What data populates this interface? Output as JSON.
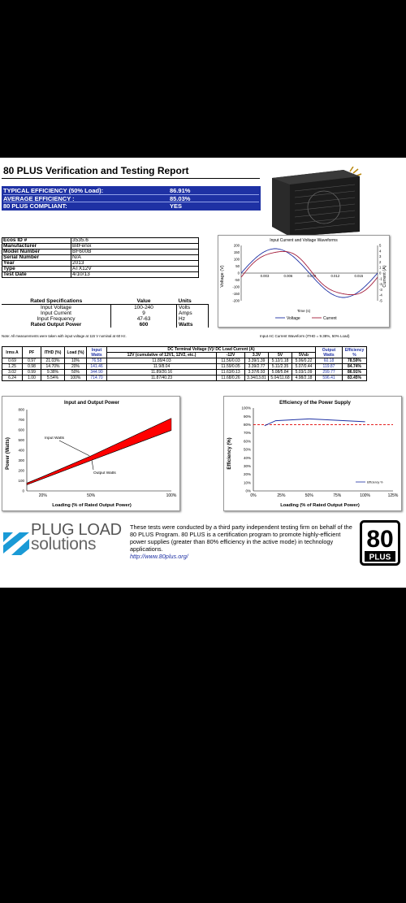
{
  "report": {
    "title": "80 PLUS Verification and Testing Report",
    "efficiency": [
      {
        "label": "TYPICAL EFFICIENCY (50% Load):",
        "value": "86.91%"
      },
      {
        "label": "AVERAGE EFFICIENCY :",
        "value": "85.03%"
      },
      {
        "label": "80 PLUS COMPLIANT:",
        "value": "YES"
      }
    ]
  },
  "info": [
    {
      "key": "Ecos ID #",
      "value": "3535.6"
    },
    {
      "key": "Manufacturer",
      "value": "BitFenix"
    },
    {
      "key": "Model Number",
      "value": "BF600B"
    },
    {
      "key": "Serial Number",
      "value": "N/A"
    },
    {
      "key": "Year",
      "value": "2013"
    },
    {
      "key": "Type",
      "value": "ATX12V"
    },
    {
      "key": "Test Date",
      "value": "4/10/13"
    }
  ],
  "rated": {
    "headers": [
      "Rated Specifications",
      "Value",
      "Units"
    ],
    "rows": [
      {
        "spec": "Input Voltage",
        "value": "100-240",
        "unit": "Volts"
      },
      {
        "spec": "Input Current",
        "value": "9",
        "unit": "Amps"
      },
      {
        "spec": "Input Frequency",
        "value": "47-63",
        "unit": "Hz"
      },
      {
        "spec": "Rated Output Power",
        "value": "600",
        "unit": "Watts"
      }
    ],
    "note": "Note: All measurements were taken with input voltage at 115 V nominal at 60 Hz."
  },
  "waveform": {
    "title": "Input Current and Voltage Waveforms",
    "ylabel_left": "Voltage (V)",
    "ylabel_right": "Current (A)",
    "xlabel": "Time (s)",
    "left_ticks": [
      "200",
      "150",
      "100",
      "50",
      "0",
      "-50",
      "-100",
      "-150",
      "-200"
    ],
    "right_ticks": [
      "5",
      "4",
      "3",
      "2",
      "1",
      "0",
      "-1",
      "-2",
      "-3",
      "-4",
      "-5"
    ],
    "x_ticks": [
      "0.003",
      "0.006",
      "0.009",
      "0.012",
      "0.015"
    ],
    "legend_voltage": "Voltage",
    "legend_current": "Current",
    "caption": "Input AC Current Waveform (ITHD = 9.38%, 50% Load)",
    "colors": {
      "voltage": "#1e31a4",
      "current": "#a41e3c"
    }
  },
  "perf": {
    "h_irms": "Irms A",
    "h_pf": "PF",
    "h_ithd": "ITHD (%)",
    "h_load": "Load (%)",
    "h_input": "Input Watts",
    "h_dc": "DC Terminal Voltage (V)/ DC Load Current (A)",
    "h_12v": "12V (cumulative of 12V1, 12V2, etc.)",
    "h_m12": "-12V",
    "h_33": "3.3V",
    "h_5": "5V",
    "h_5sb": "5Vsb",
    "h_output": "Output Watts",
    "h_eff": "Efficiency %",
    "rows": [
      {
        "irms": "0.69",
        "pf": "0.97",
        "ithd": "21.03%",
        "load": "10%",
        "input": "76.58",
        "v12": "11.89/4.03",
        "m12": "11.56/0.03",
        "v33": "3.39/1.39",
        "v5": "5.12/1.18",
        "v5sb": "5.06/0.22",
        "output": "60.18",
        "eff": "78.59%"
      },
      {
        "irms": "1.25",
        "pf": "0.98",
        "ithd": "14.70%",
        "load": "20%",
        "input": "141.46",
        "v12": "11.9/8.04",
        "m12": "11.59/0.05",
        "v33": "3.39/2.77",
        "v5": "5.11/2.35",
        "v5sb": "5.07/0.44",
        "output": "119.87",
        "eff": "84.74%"
      },
      {
        "irms": "3.02",
        "pf": "0.99",
        "ithd": "9.38%",
        "load": "50%",
        "input": "344.90",
        "v12": "11.89/20.16",
        "m12": "11.63/0.13",
        "v33": "3.37/6.93",
        "v5": "5.08/5.84",
        "v5sb": "5.03/1.09",
        "output": "299.77",
        "eff": "86.91%"
      },
      {
        "irms": "6.24",
        "pf": "1.00",
        "ithd": "5.54%",
        "load": "100%",
        "input": "714.70",
        "v12": "11.87/40.23",
        "m12": "11.68/0.26",
        "v33": "3.34/13.81",
        "v5": "5.04/11.68",
        "v5sb": "4.98/2.18",
        "output": "596.41",
        "eff": "83.45%"
      }
    ]
  },
  "chart_data": [
    {
      "type": "area",
      "title": "Input and Output Power",
      "xlabel": "Loading (% of Rated Output Power)",
      "ylabel": "Power (Watts)",
      "x": [
        10,
        20,
        50,
        100
      ],
      "x_ticks": [
        "20%",
        "50%",
        "100%"
      ],
      "y_ticks": [
        "800",
        "700",
        "600",
        "500",
        "400",
        "300",
        "200",
        "100",
        "0"
      ],
      "xlim": [
        10,
        100
      ],
      "ylim": [
        0,
        800
      ],
      "series": [
        {
          "name": "Input Watts",
          "values": [
            76.58,
            141.46,
            344.9,
            714.7
          ]
        },
        {
          "name": "Output Watts",
          "values": [
            60.18,
            119.87,
            299.77,
            596.41
          ]
        }
      ],
      "fill_color": "#ff0000",
      "grid": false
    },
    {
      "type": "line",
      "title": "Efficiency of the Power Supply",
      "xlabel": "Loading (% of Rated Output Power)",
      "ylabel": "Efficiency (%)",
      "x": [
        10,
        20,
        50,
        100
      ],
      "x_ticks": [
        "0%",
        "25%",
        "50%",
        "75%",
        "100%",
        "125%"
      ],
      "y_ticks": [
        "100%",
        "90%",
        "80%",
        "70%",
        "60%",
        "50%",
        "40%",
        "30%",
        "20%",
        "10%",
        "0%"
      ],
      "xlim": [
        0,
        125
      ],
      "ylim": [
        0,
        100
      ],
      "series": [
        {
          "name": "Efficiency %",
          "values": [
            78.59,
            84.74,
            86.91,
            83.45
          ]
        }
      ],
      "threshold": 80,
      "line_color": "#1e31a4",
      "threshold_color": "#e00000",
      "legend": "bottom-right"
    }
  ],
  "footer": {
    "logo_line1": "PLUG LOAD",
    "logo_line2": "solutions",
    "blurb": "These tests were conducted by a third party independent testing firm on behalf of the 80 PLUS Program. 80 PLUS is a certification program to promote highly-efficient power supplies (greater than 80% efficiency in the active mode) in technology applications.",
    "link": "http://www.80plus.org/",
    "badge_number": "80",
    "badge_word": "PLUS"
  }
}
